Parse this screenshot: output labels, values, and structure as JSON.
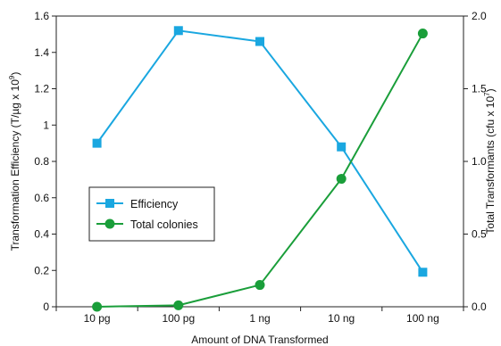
{
  "chart_data": {
    "type": "line",
    "categories": [
      "10 pg",
      "100 pg",
      "1 ng",
      "10 ng",
      "100 ng"
    ],
    "xlabel": "Amount of DNA Transformed",
    "ylabel_left": {
      "main": "Transformation Efficiency (T/µg x 10",
      "sup": "9",
      "tail": ")"
    },
    "ylabel_right": {
      "main": "Total Transformants (cfu x 10",
      "sup": "7",
      "tail": ")"
    },
    "ylim_left": [
      0,
      1.6
    ],
    "ylim_right": [
      0,
      2.0
    ],
    "yticks_left": [
      "0",
      "0.2",
      "0.4",
      "0.6",
      "0.8",
      "1",
      "1.2",
      "1.4",
      "1.6"
    ],
    "yticks_right": [
      "0.0",
      "0.5",
      "1.0",
      "1.5",
      "2.0"
    ],
    "grid": false,
    "legend_position": "center-left",
    "series": [
      {
        "name": "Efficiency",
        "axis": "left",
        "color": "#1aa7e0",
        "marker": "square",
        "values": [
          0.9,
          1.52,
          1.46,
          0.88,
          0.19
        ]
      },
      {
        "name": "Total colonies",
        "axis": "right",
        "color": "#1a9e3a",
        "marker": "circle",
        "values": [
          0.0,
          0.01,
          0.15,
          0.88,
          1.88
        ]
      }
    ]
  }
}
